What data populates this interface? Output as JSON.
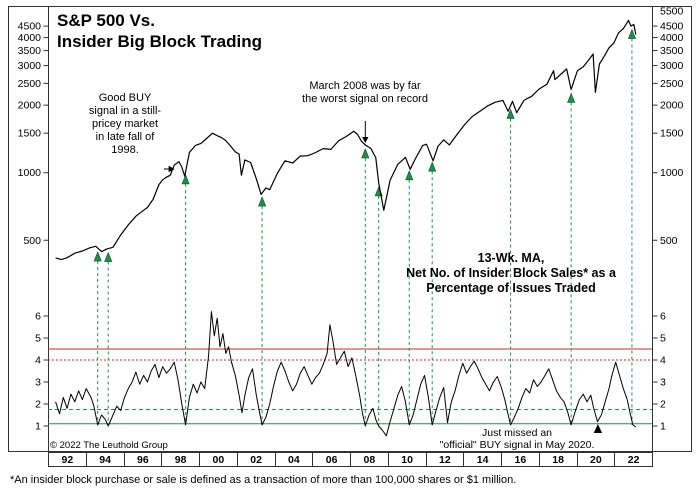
{
  "header": {
    "title_line1": "S&P 500 Vs.",
    "title_line2": "Insider Big Block Trading"
  },
  "annotations": {
    "ann_1998": "Good BUY signal in a still-pricey market in late fall of 1998.",
    "ann_2008": "March 2008 was by far the worst signal on record",
    "ma_label": [
      "13-Wk. MA,",
      "Net No. of Insider Block Sales* as a",
      "Percentage of Issues Traded"
    ],
    "ann_2020": [
      "Just missed an",
      "\"official\" BUY signal in May 2020."
    ]
  },
  "copyright": "© 2022 The Leuthold Group",
  "footnote": "*An insider block purchase or sale is defined as a transaction of more than 100,000 shares or $1 million.",
  "colors": {
    "signal_green": "#1e8f4a",
    "signal_green_dark": "#0c5428",
    "threshold_red": "#c03028",
    "frame": "#333333",
    "series": "#000000"
  },
  "chart_data": {
    "type": "line",
    "title": "S&P 500 Vs. Insider Big Block Trading",
    "x_range": [
      1991.6,
      2023.2
    ],
    "x_tick_years": [
      "92",
      "94",
      "96",
      "98",
      "00",
      "02",
      "04",
      "06",
      "08",
      "10",
      "12",
      "14",
      "16",
      "18",
      "20",
      "22"
    ],
    "top_panel": {
      "name": "S&P 500",
      "scale": "log",
      "ylim": [
        400,
        5530
      ],
      "y_ticks_left": [
        4500,
        4000,
        3500,
        3000,
        2500,
        2000,
        1500,
        1000,
        500
      ],
      "y_ticks_right": [
        5500,
        4500,
        4000,
        3500,
        3000,
        2500,
        2000,
        1500,
        1000,
        500
      ],
      "points": [
        [
          1992.0,
          417
        ],
        [
          1992.3,
          410
        ],
        [
          1992.6,
          418
        ],
        [
          1993.0,
          438
        ],
        [
          1993.4,
          448
        ],
        [
          1993.8,
          463
        ],
        [
          1994.1,
          470
        ],
        [
          1994.4,
          445
        ],
        [
          1994.7,
          458
        ],
        [
          1995.0,
          465
        ],
        [
          1995.4,
          527
        ],
        [
          1995.8,
          585
        ],
        [
          1996.2,
          640
        ],
        [
          1996.5,
          670
        ],
        [
          1996.8,
          700
        ],
        [
          1997.1,
          760
        ],
        [
          1997.4,
          885
        ],
        [
          1997.6,
          930
        ],
        [
          1997.75,
          950
        ],
        [
          1998.0,
          975
        ],
        [
          1998.2,
          1080
        ],
        [
          1998.45,
          1120
        ],
        [
          1998.6,
          1060
        ],
        [
          1998.75,
          965
        ],
        [
          1999.0,
          1230
        ],
        [
          1999.3,
          1320
        ],
        [
          1999.6,
          1350
        ],
        [
          1999.9,
          1420
        ],
        [
          2000.2,
          1500
        ],
        [
          2000.5,
          1455
        ],
        [
          2000.7,
          1430
        ],
        [
          2000.9,
          1390
        ],
        [
          2001.1,
          1330
        ],
        [
          2001.4,
          1240
        ],
        [
          2001.6,
          1210
        ],
        [
          2001.72,
          975
        ],
        [
          2001.9,
          1140
        ],
        [
          2002.2,
          1110
        ],
        [
          2002.5,
          940
        ],
        [
          2002.75,
          800
        ],
        [
          2003.0,
          855
        ],
        [
          2003.2,
          840
        ],
        [
          2003.6,
          995
        ],
        [
          2004.0,
          1130
        ],
        [
          2004.4,
          1105
        ],
        [
          2004.8,
          1185
        ],
        [
          2005.2,
          1190
        ],
        [
          2005.6,
          1230
        ],
        [
          2006.0,
          1280
        ],
        [
          2006.4,
          1270
        ],
        [
          2006.8,
          1385
        ],
        [
          2007.2,
          1450
        ],
        [
          2007.6,
          1530
        ],
        [
          2007.8,
          1480
        ],
        [
          2008.0,
          1380
        ],
        [
          2008.2,
          1330
        ],
        [
          2008.5,
          1280
        ],
        [
          2008.75,
          1165
        ],
        [
          2008.9,
          900
        ],
        [
          2009.17,
          680
        ],
        [
          2009.5,
          925
        ],
        [
          2009.9,
          1090
        ],
        [
          2010.3,
          1170
        ],
        [
          2010.55,
          1035
        ],
        [
          2010.8,
          1145
        ],
        [
          2011.2,
          1320
        ],
        [
          2011.4,
          1340
        ],
        [
          2011.75,
          1130
        ],
        [
          2012.0,
          1310
        ],
        [
          2012.3,
          1400
        ],
        [
          2012.6,
          1330
        ],
        [
          2013.0,
          1480
        ],
        [
          2013.4,
          1640
        ],
        [
          2013.8,
          1780
        ],
        [
          2014.2,
          1880
        ],
        [
          2014.6,
          1985
        ],
        [
          2015.0,
          2060
        ],
        [
          2015.4,
          2100
        ],
        [
          2015.67,
          1880
        ],
        [
          2015.9,
          2080
        ],
        [
          2016.12,
          1850
        ],
        [
          2016.5,
          2100
        ],
        [
          2016.9,
          2190
        ],
        [
          2017.3,
          2360
        ],
        [
          2017.7,
          2480
        ],
        [
          2018.05,
          2850
        ],
        [
          2018.12,
          2600
        ],
        [
          2018.5,
          2780
        ],
        [
          2018.73,
          2900
        ],
        [
          2018.97,
          2350
        ],
        [
          2019.3,
          2850
        ],
        [
          2019.6,
          2960
        ],
        [
          2019.95,
          3230
        ],
        [
          2020.12,
          3380
        ],
        [
          2020.24,
          2280
        ],
        [
          2020.45,
          3050
        ],
        [
          2020.7,
          3300
        ],
        [
          2020.95,
          3600
        ],
        [
          2021.2,
          3780
        ],
        [
          2021.45,
          4200
        ],
        [
          2021.7,
          4380
        ],
        [
          2021.97,
          4770
        ],
        [
          2022.1,
          4500
        ],
        [
          2022.25,
          4580
        ],
        [
          2022.35,
          4130
        ]
      ]
    },
    "bottom_panel": {
      "name": "13-Wk. MA, Net No. of Insider Block Sales as a Percentage of Issues Traded",
      "scale": "linear",
      "ylim": [
        0.3,
        6.8
      ],
      "y_ticks": [
        6,
        5,
        4,
        3,
        2,
        1
      ],
      "thresholds": {
        "red_solid": 4.5,
        "red_dotted": 4.0,
        "green_dashed": 1.75,
        "green_solid": 1.1
      },
      "points": [
        [
          1992.0,
          2.1
        ],
        [
          1992.2,
          1.55
        ],
        [
          1992.4,
          2.3
        ],
        [
          1992.6,
          1.8
        ],
        [
          1992.8,
          2.45
        ],
        [
          1993.0,
          2.1
        ],
        [
          1993.2,
          2.6
        ],
        [
          1993.4,
          2.2
        ],
        [
          1993.6,
          2.7
        ],
        [
          1993.85,
          2.3
        ],
        [
          1994.0,
          1.9
        ],
        [
          1994.2,
          1.05
        ],
        [
          1994.4,
          1.5
        ],
        [
          1994.6,
          1.3
        ],
        [
          1994.75,
          1.0
        ],
        [
          1995.0,
          1.5
        ],
        [
          1995.2,
          1.9
        ],
        [
          1995.4,
          1.7
        ],
        [
          1995.6,
          2.3
        ],
        [
          1995.8,
          2.7
        ],
        [
          1996.0,
          3.0
        ],
        [
          1996.2,
          3.45
        ],
        [
          1996.4,
          2.9
        ],
        [
          1996.6,
          3.3
        ],
        [
          1996.8,
          3.0
        ],
        [
          1997.0,
          3.5
        ],
        [
          1997.2,
          3.8
        ],
        [
          1997.4,
          3.2
        ],
        [
          1997.6,
          3.7
        ],
        [
          1997.8,
          3.4
        ],
        [
          1998.0,
          3.6
        ],
        [
          1998.2,
          3.9
        ],
        [
          1998.4,
          3.1
        ],
        [
          1998.6,
          2.0
        ],
        [
          1998.8,
          1.05
        ],
        [
          1999.0,
          2.3
        ],
        [
          1999.2,
          2.9
        ],
        [
          1999.4,
          2.5
        ],
        [
          1999.6,
          3.0
        ],
        [
          1999.8,
          2.7
        ],
        [
          2000.0,
          4.2
        ],
        [
          2000.15,
          6.2
        ],
        [
          2000.3,
          5.1
        ],
        [
          2000.45,
          5.9
        ],
        [
          2000.6,
          4.6
        ],
        [
          2000.75,
          5.2
        ],
        [
          2000.9,
          4.3
        ],
        [
          2001.05,
          4.6
        ],
        [
          2001.2,
          3.9
        ],
        [
          2001.4,
          3.3
        ],
        [
          2001.6,
          2.4
        ],
        [
          2001.75,
          1.6
        ],
        [
          2001.9,
          2.4
        ],
        [
          2002.1,
          3.2
        ],
        [
          2002.3,
          3.6
        ],
        [
          2002.5,
          2.4
        ],
        [
          2002.65,
          1.7
        ],
        [
          2002.8,
          1.05
        ],
        [
          2003.0,
          1.4
        ],
        [
          2003.2,
          2.0
        ],
        [
          2003.4,
          2.8
        ],
        [
          2003.6,
          3.5
        ],
        [
          2003.8,
          3.9
        ],
        [
          2004.0,
          3.5
        ],
        [
          2004.2,
          3.0
        ],
        [
          2004.4,
          2.6
        ],
        [
          2004.6,
          2.9
        ],
        [
          2004.8,
          3.4
        ],
        [
          2005.0,
          3.7
        ],
        [
          2005.2,
          3.3
        ],
        [
          2005.4,
          2.9
        ],
        [
          2005.6,
          3.2
        ],
        [
          2005.8,
          3.4
        ],
        [
          2006.0,
          3.8
        ],
        [
          2006.2,
          4.3
        ],
        [
          2006.35,
          5.6
        ],
        [
          2006.5,
          4.9
        ],
        [
          2006.7,
          3.8
        ],
        [
          2006.9,
          4.1
        ],
        [
          2007.1,
          4.4
        ],
        [
          2007.3,
          3.7
        ],
        [
          2007.5,
          4.1
        ],
        [
          2007.7,
          3.3
        ],
        [
          2007.9,
          2.4
        ],
        [
          2008.05,
          1.6
        ],
        [
          2008.2,
          1.0
        ],
        [
          2008.4,
          1.5
        ],
        [
          2008.6,
          1.8
        ],
        [
          2008.75,
          1.3
        ],
        [
          2008.9,
          1.0
        ],
        [
          2009.1,
          0.8
        ],
        [
          2009.3,
          0.55
        ],
        [
          2009.5,
          1.2
        ],
        [
          2009.7,
          1.8
        ],
        [
          2009.9,
          2.4
        ],
        [
          2010.1,
          2.8
        ],
        [
          2010.3,
          2.1
        ],
        [
          2010.5,
          1.05
        ],
        [
          2010.7,
          1.5
        ],
        [
          2010.9,
          2.2
        ],
        [
          2011.1,
          2.9
        ],
        [
          2011.3,
          3.3
        ],
        [
          2011.5,
          2.3
        ],
        [
          2011.7,
          1.05
        ],
        [
          2011.9,
          1.7
        ],
        [
          2012.1,
          2.3
        ],
        [
          2012.3,
          2.75
        ],
        [
          2012.5,
          1.15
        ],
        [
          2012.7,
          2.1
        ],
        [
          2012.9,
          2.6
        ],
        [
          2013.1,
          3.3
        ],
        [
          2013.3,
          3.85
        ],
        [
          2013.5,
          3.4
        ],
        [
          2013.7,
          3.7
        ],
        [
          2013.9,
          3.95
        ],
        [
          2014.1,
          3.6
        ],
        [
          2014.3,
          3.2
        ],
        [
          2014.5,
          2.9
        ],
        [
          2014.7,
          2.6
        ],
        [
          2014.9,
          3.0
        ],
        [
          2015.1,
          3.25
        ],
        [
          2015.3,
          2.8
        ],
        [
          2015.5,
          2.2
        ],
        [
          2015.65,
          1.6
        ],
        [
          2015.8,
          1.05
        ],
        [
          2016.0,
          1.4
        ],
        [
          2016.2,
          1.8
        ],
        [
          2016.4,
          2.3
        ],
        [
          2016.6,
          2.7
        ],
        [
          2016.8,
          2.5
        ],
        [
          2017.0,
          3.1
        ],
        [
          2017.2,
          2.8
        ],
        [
          2017.4,
          3.0
        ],
        [
          2017.6,
          3.3
        ],
        [
          2017.8,
          3.6
        ],
        [
          2018.0,
          3.1
        ],
        [
          2018.2,
          2.6
        ],
        [
          2018.4,
          2.3
        ],
        [
          2018.6,
          2.1
        ],
        [
          2018.8,
          1.6
        ],
        [
          2018.97,
          1.05
        ],
        [
          2019.2,
          1.7
        ],
        [
          2019.4,
          2.2
        ],
        [
          2019.6,
          2.45
        ],
        [
          2019.8,
          2.1
        ],
        [
          2020.0,
          2.4
        ],
        [
          2020.15,
          1.8
        ],
        [
          2020.35,
          1.2
        ],
        [
          2020.55,
          1.5
        ],
        [
          2020.75,
          2.1
        ],
        [
          2020.95,
          2.7
        ],
        [
          2021.1,
          3.3
        ],
        [
          2021.3,
          3.9
        ],
        [
          2021.5,
          3.3
        ],
        [
          2021.7,
          2.7
        ],
        [
          2021.9,
          2.2
        ],
        [
          2022.05,
          1.6
        ],
        [
          2022.2,
          1.05
        ],
        [
          2022.35,
          0.95
        ]
      ]
    },
    "buy_signals_x": [
      1994.2,
      1994.75,
      1998.8,
      2002.8,
      2008.2,
      2008.9,
      2010.5,
      2011.7,
      2015.8,
      2018.97,
      2022.15
    ],
    "may_2020_near_miss_x": 2020.37,
    "march_2008_signal_x": 2008.2
  }
}
